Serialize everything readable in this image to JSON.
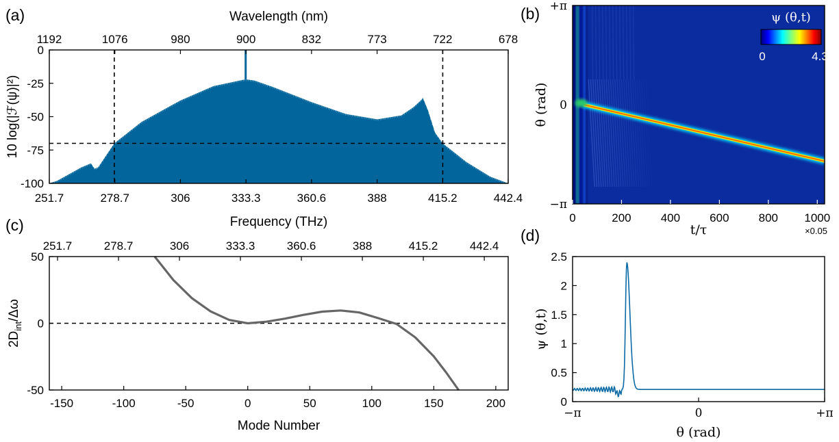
{
  "chart_data": [
    {
      "panel": "(a)",
      "type": "area",
      "xlabel": "Frequency (THz)",
      "x2label": "Wavelength (nm)",
      "ylabel": "10 log(|ℱ(ψ)|²)",
      "xticks": [
        "251.7",
        "278.7",
        "306",
        "333.3",
        "360.6",
        "388",
        "415.2",
        "442.4"
      ],
      "x2ticks": [
        "1192",
        "1076",
        "980",
        "900",
        "832",
        "773",
        "722",
        "678"
      ],
      "yticks": [
        "0",
        "-25",
        "-50",
        "-75",
        "-100"
      ],
      "xlim": [
        251.7,
        442.4
      ],
      "ylim": [
        -100,
        0
      ],
      "envelope": {
        "x": [
          251.7,
          255,
          260,
          265,
          269,
          270.5,
          272,
          278.7,
          290,
          306,
          320,
          333.3,
          337,
          345,
          360.6,
          375,
          388,
          398,
          403,
          406,
          407,
          409,
          412,
          415.2,
          425,
          435,
          442.4
        ],
        "y": [
          -100,
          -98,
          -93,
          -88,
          -85,
          -89,
          -88,
          -70,
          -54,
          -38,
          -27,
          -22,
          -23,
          -28,
          -39,
          -48,
          -52,
          -49,
          -43,
          -38,
          -36,
          -45,
          -62,
          -70,
          -84,
          -95,
          -100
        ]
      },
      "pump_line": {
        "x": 333.3,
        "y": 0
      },
      "threshold_y": -70,
      "dashed_vertical_x": [
        278.7,
        415.2
      ],
      "color": "#02659B"
    },
    {
      "panel": "(b)",
      "type": "heatmap",
      "xlabel": "t/τ",
      "ylabel": "θ (rad)",
      "xticks": [
        "0",
        "200",
        "400",
        "600",
        "800",
        "1000"
      ],
      "x_multiplier": "×0.05",
      "yticks": [
        "+π",
        "0",
        "−π"
      ],
      "xlim": [
        0,
        1030
      ],
      "ylim": [
        -3.1416,
        3.1416
      ],
      "colorbar": {
        "label": "ψ (θ,t)",
        "min": "0",
        "max": "4.3",
        "colormap": "jet"
      },
      "soliton_trajectory": {
        "t": [
          45,
          1030
        ],
        "theta": [
          0,
          -1.79
        ]
      }
    },
    {
      "panel": "(c)",
      "type": "line",
      "xlabel": "Mode Number",
      "x2label": "Frequency (THz)",
      "ylabel": "2D_int/Δω",
      "ylabel_main": "2D",
      "ylabel_sub": "int",
      "ylabel_tail": "/Δω",
      "xticks": [
        "-150",
        "-100",
        "-50",
        "0",
        "50",
        "100",
        "150",
        "200"
      ],
      "x2ticks": [
        "251.7",
        "278.7",
        "306",
        "333.3",
        "360.6",
        "388",
        "415.2",
        "442.4"
      ],
      "yticks": [
        "50",
        "0",
        "-50"
      ],
      "xlim": [
        -160,
        210
      ],
      "ylim": [
        -50,
        50
      ],
      "x": [
        -75,
        -60,
        -45,
        -30,
        -15,
        0,
        15,
        30,
        45,
        60,
        75,
        90,
        105,
        120,
        135,
        150,
        160,
        170
      ],
      "y": [
        50,
        32.4,
        18.8,
        8.9,
        2.5,
        0,
        1.2,
        3.5,
        6.3,
        8.7,
        9.6,
        8.1,
        3.9,
        -0.5,
        -10.5,
        -24.8,
        -36.9,
        -50
      ],
      "reference_y": 0,
      "color": "#666666"
    },
    {
      "panel": "(d)",
      "type": "line",
      "xlabel": "θ (rad)",
      "ylabel": "ψ (θ,t)",
      "xticks": [
        "−π",
        "0",
        "+π"
      ],
      "yticks": [
        "0",
        "0.5",
        "1",
        "1.5",
        "2",
        "2.5"
      ],
      "xlim": [
        -3.1416,
        3.1416
      ],
      "ylim": [
        0,
        2.5
      ],
      "baseline": 0.21,
      "peak": {
        "theta": -1.79,
        "value": 2.4
      },
      "color": "#0A6AA6"
    }
  ]
}
